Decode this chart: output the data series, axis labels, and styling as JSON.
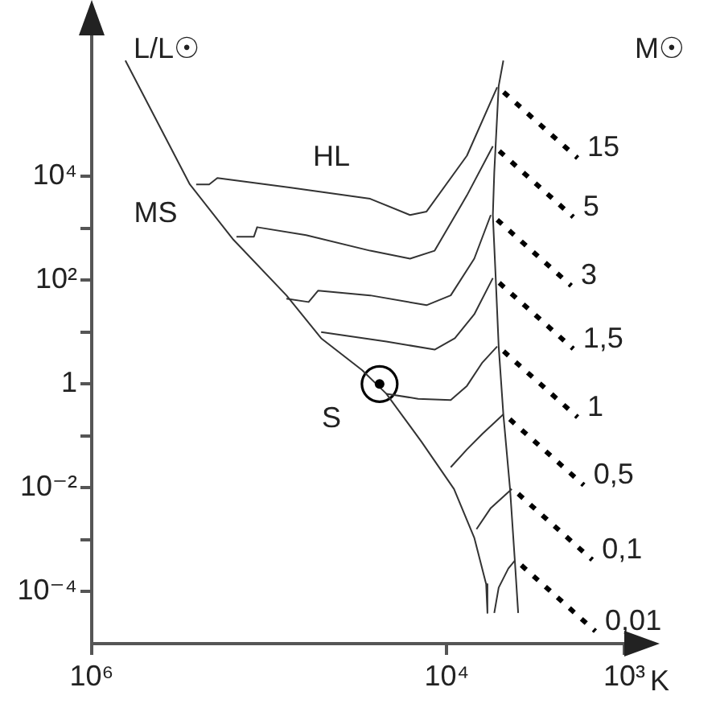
{
  "chart_data": {
    "type": "line",
    "xlabel": "K",
    "ylabel": "L/L☉",
    "legend_title": "M☉",
    "log": "xy",
    "grid": false,
    "legend": false,
    "marker": "none",
    "xlim": [
      1000000,
      1000
    ],
    "xticks": [
      {
        "value": 1000000,
        "label": "10⁶"
      },
      {
        "value": 10000,
        "label": "10⁴"
      },
      {
        "value": 1000,
        "label": "10³"
      }
    ],
    "ylim": [
      1e-05,
      10000000
    ],
    "yticks": [
      {
        "value": 0.0001,
        "label": "10⁻⁴"
      },
      {
        "value": 0.001,
        "label": null
      },
      {
        "value": 0.01,
        "label": "10⁻²"
      },
      {
        "value": 0.1,
        "label": null
      },
      1,
      {
        "value": 10,
        "label": null
      },
      {
        "value": 100,
        "label": "10²"
      },
      {
        "value": 1000,
        "label": null
      },
      {
        "value": 10000,
        "label": "10⁴"
      }
    ],
    "annotations": [
      "HL",
      "MS",
      "S"
    ],
    "series": [
      {
        "color": "#333333",
        "x": [
          646000,
          280000,
          159000,
          80000,
          51000,
          30000,
          21900,
          13900,
          9100,
          7000,
          6000,
          5900
        ],
        "values": [
          1700000,
          7000,
          600,
          51,
          7.6,
          1.86,
          0.65,
          0.078,
          0.0095,
          0.0011,
          0.00014,
          3.9e-05
        ]
      },
      {
        "color": "#333333",
        "x": [
          4800,
          5100,
          5400,
          5500,
          5300,
          5100,
          4800,
          4400,
          4130,
          3960
        ],
        "values": [
          1700000,
          550000,
          12000,
          1800,
          110,
          5.3,
          0.26,
          0.0095,
          0.00037,
          3.9e-05
        ]
      },
      {
        "name": "15",
        "color": "#333333",
        "x": [
          5200,
          7700,
          13000,
          16100,
          27000,
          77000,
          196000,
          218000,
          258000
        ],
        "values": [
          520000,
          25000,
          2100,
          1800,
          3700,
          6100,
          9300,
          7000,
          7000
        ]
      },
      {
        "name": "5",
        "color": "#333333",
        "x": [
          5500,
          7700,
          11700,
          16100,
          27000,
          62000,
          117000,
          122000,
          153000
        ],
        "values": [
          38000,
          4300,
          370,
          260,
          370,
          740,
          1050,
          690,
          690
        ]
      },
      {
        "name": "3",
        "color": "#333333",
        "x": [
          5650,
          7000,
          9500,
          13000,
          27000,
          53000,
          60000,
          80000
        ],
        "values": [
          1800,
          260,
          51,
          33,
          51,
          63,
          38,
          44
        ]
      },
      {
        "name": "1,5",
        "color": "#333333",
        "x": [
          5500,
          7000,
          9000,
          11700,
          21900,
          51000
        ],
        "values": [
          110,
          22,
          7.6,
          4.6,
          6.6,
          10
        ]
      },
      {
        "name": "1",
        "color": "#333333",
        "x": [
          5200,
          6300,
          7700,
          9500,
          14500,
          21900
        ],
        "values": [
          5.3,
          2.6,
          0.92,
          0.49,
          0.52,
          0.65
        ]
      },
      {
        "name": "0,5",
        "color": "#333333",
        "x": [
          4800,
          6300,
          7700,
          9500
        ],
        "values": [
          0.26,
          0.11,
          0.055,
          0.025
        ]
      },
      {
        "name": "0,1",
        "color": "#333333",
        "x": [
          4300,
          5650,
          6800
        ],
        "values": [
          0.0095,
          0.0041,
          0.0016
        ]
      },
      {
        "name": "0,01",
        "color": "#333333",
        "x": [
          4130,
          4500,
          5100,
          5400
        ],
        "values": [
          0.0004,
          0.00028,
          0.00012,
          3.9e-05
        ]
      },
      {
        "type": "scatter",
        "marker": "circle",
        "color": "#000000",
        "x": [
          23900
        ],
        "values": [
          1
        ]
      }
    ]
  }
}
